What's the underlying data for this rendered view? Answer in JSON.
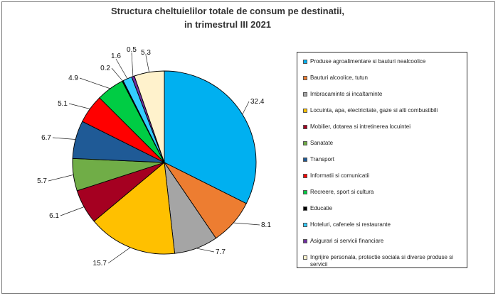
{
  "chart_data": {
    "type": "pie",
    "title_lines": [
      "Structura cheltuielilor totale de consum pe destinatii,",
      "in trimestrul III 2021"
    ],
    "legend_position": "right",
    "slices": [
      {
        "label": "Produse agroalimentare si bauturi nealcoolice",
        "value": 32.4,
        "display": "32.4",
        "color": "#00b0f0"
      },
      {
        "label": "Bauturi alcoolice, tutun",
        "value": 8.1,
        "display": "8.1",
        "color": "#ed7d31"
      },
      {
        "label": "Imbracaminte si incaltaminte",
        "value": 7.7,
        "display": "7.7",
        "color": "#a5a5a5"
      },
      {
        "label": "Locuinta, apa, electricitate, gaze si alti combustibili",
        "value": 15.7,
        "display": "15.7",
        "color": "#ffc000"
      },
      {
        "label": "Mobilier, dotarea si intretinerea locuintei",
        "value": 6.1,
        "display": "6.1",
        "color": "#a50021"
      },
      {
        "label": "Sanatate",
        "value": 5.7,
        "display": "5.7",
        "color": "#70ad47"
      },
      {
        "label": "Transport",
        "value": 6.7,
        "display": "6.7",
        "color": "#1f5a96"
      },
      {
        "label": "Informatii si comunicatii",
        "value": 5.1,
        "display": "5.1",
        "color": "#ff0000"
      },
      {
        "label": "Recreere, sport si cultura",
        "value": 4.9,
        "display": "4.9",
        "color": "#00cc44"
      },
      {
        "label": "Educatie",
        "value": 0.2,
        "display": "0.2",
        "color": "#000000"
      },
      {
        "label": "Hoteluri, cafenele si restaurante",
        "value": 1.6,
        "display": "1.6",
        "color": "#33ccff"
      },
      {
        "label": "Asigurari si servicii financiare",
        "value": 0.5,
        "display": "0.5",
        "color": "#7030a0"
      },
      {
        "label": "Ingrijire personala, protectie sociala si diverse produse si servicii",
        "value": 5.3,
        "display": "5.3",
        "color": "#fff2cc"
      }
    ]
  }
}
